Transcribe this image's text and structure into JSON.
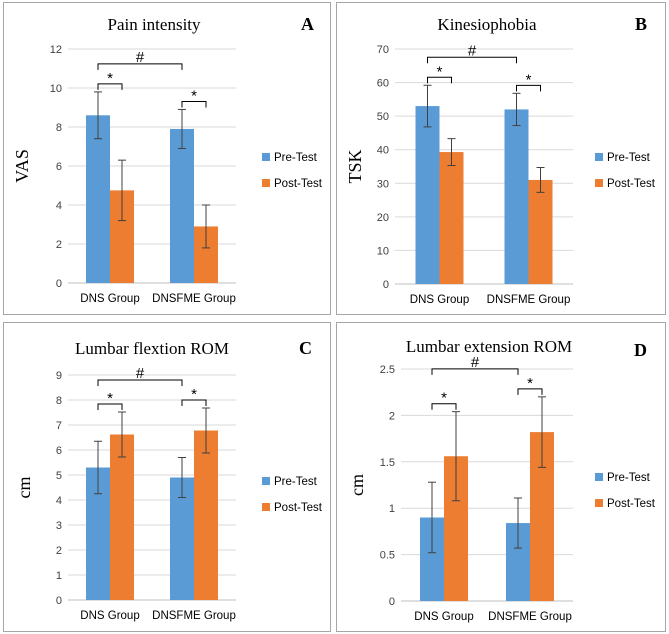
{
  "chart_data": [
    {
      "id": "A",
      "type": "bar",
      "title": "Pain intensity",
      "panel_label": "A",
      "ylabel": "VAS",
      "xlabel": "",
      "ylim": [
        0,
        12
      ],
      "ystep": 2,
      "yticks": [
        "0",
        "2",
        "4",
        "6",
        "8",
        "10",
        "12"
      ],
      "categories": [
        "DNS Group",
        "DNSFME Group"
      ],
      "series": [
        {
          "name": "Pre-Test",
          "color": "#5b9bd5",
          "values": [
            8.6,
            7.9
          ],
          "errors": [
            1.2,
            1.0
          ]
        },
        {
          "name": "Post-Test",
          "color": "#ed7d31",
          "values": [
            4.75,
            2.9
          ],
          "errors": [
            1.55,
            1.1
          ]
        }
      ],
      "annotations": {
        "within": "*",
        "between": "#"
      }
    },
    {
      "id": "B",
      "type": "bar",
      "title": "Kinesiophobia",
      "panel_label": "B",
      "ylabel": "TSK",
      "xlabel": "",
      "ylim": [
        0,
        70
      ],
      "ystep": 10,
      "yticks": [
        "0",
        "10",
        "20",
        "30",
        "40",
        "50",
        "60",
        "70"
      ],
      "categories": [
        "DNS Group",
        "DNSFME Group"
      ],
      "series": [
        {
          "name": "Pre-Test",
          "color": "#5b9bd5",
          "values": [
            53,
            52
          ],
          "errors": [
            6.2,
            4.8
          ]
        },
        {
          "name": "Post-Test",
          "color": "#ed7d31",
          "values": [
            39.3,
            31
          ],
          "errors": [
            4.0,
            3.7
          ]
        }
      ],
      "annotations": {
        "within": "*",
        "between": "#"
      }
    },
    {
      "id": "C",
      "type": "bar",
      "title": "Lumbar flextion ROM",
      "panel_label": "C",
      "ylabel": "cm",
      "xlabel": "",
      "ylim": [
        0,
        9
      ],
      "ystep": 1,
      "yticks": [
        "0",
        "1",
        "2",
        "3",
        "4",
        "5",
        "6",
        "7",
        "8",
        "9"
      ],
      "categories": [
        "DNS Group",
        "DNSFME Group"
      ],
      "series": [
        {
          "name": "Pre-Test",
          "color": "#5b9bd5",
          "values": [
            5.3,
            4.9
          ],
          "errors": [
            1.05,
            0.8
          ]
        },
        {
          "name": "Post-Test",
          "color": "#ed7d31",
          "values": [
            6.62,
            6.78
          ],
          "errors": [
            0.9,
            0.9
          ]
        }
      ],
      "annotations": {
        "within": "*",
        "between": "#"
      }
    },
    {
      "id": "D",
      "type": "bar",
      "title": "Lumbar extension ROM",
      "panel_label": "D",
      "ylabel": "cm",
      "xlabel": "",
      "ylim": [
        0,
        2.5
      ],
      "ystep": 0.5,
      "yticks": [
        "0",
        "0.5",
        "1",
        "1.5",
        "2",
        "2.5"
      ],
      "categories": [
        "DNS Group",
        "DNSFME Group"
      ],
      "series": [
        {
          "name": "Pre-Test",
          "color": "#5b9bd5",
          "values": [
            0.9,
            0.84
          ],
          "errors": [
            0.38,
            0.27
          ]
        },
        {
          "name": "Post-Test",
          "color": "#ed7d31",
          "values": [
            1.56,
            1.82
          ],
          "errors": [
            0.48,
            0.38
          ]
        }
      ],
      "annotations": {
        "within": "*",
        "between": "#"
      }
    }
  ]
}
